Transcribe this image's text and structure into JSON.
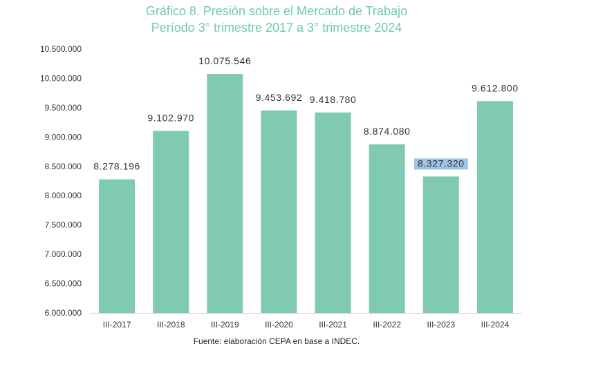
{
  "chart_data": {
    "type": "bar",
    "title": "Gráfico 8. Presión sobre el Mercado de Trabajo",
    "subtitle": "Período 3° trimestre 2017 a 3° trimestre 2024",
    "categories": [
      "III-2017",
      "III-2018",
      "III-2019",
      "III-2020",
      "III-2021",
      "III-2022",
      "III-2023",
      "III-2024"
    ],
    "values": [
      8278196,
      9102970,
      10075546,
      9453692,
      9418780,
      8874080,
      8327320,
      9612800
    ],
    "value_labels": [
      "8.278.196",
      "9.102.970",
      "10.075.546",
      "9.453.692",
      "9.418.780",
      "8.874.080",
      "8.327.320",
      "9.612.800"
    ],
    "y_ticks": [
      6000000,
      6500000,
      7000000,
      7500000,
      8000000,
      8500000,
      9000000,
      9500000,
      10000000,
      10500000
    ],
    "y_tick_labels": [
      "6.000.000",
      "6.500.000",
      "7.000.000",
      "7.500.000",
      "8.000.000",
      "8.500.000",
      "9.000.000",
      "9.500.000",
      "10.000.000",
      "10.500.000"
    ],
    "ylim": [
      6000000,
      10500000
    ],
    "grid": false,
    "bar_color": "#80cbb0",
    "highlight_color": "#9ec3e6",
    "highlighted_label_index": 6,
    "source": "Fuente: elaboración CEPA en base a INDEC."
  }
}
